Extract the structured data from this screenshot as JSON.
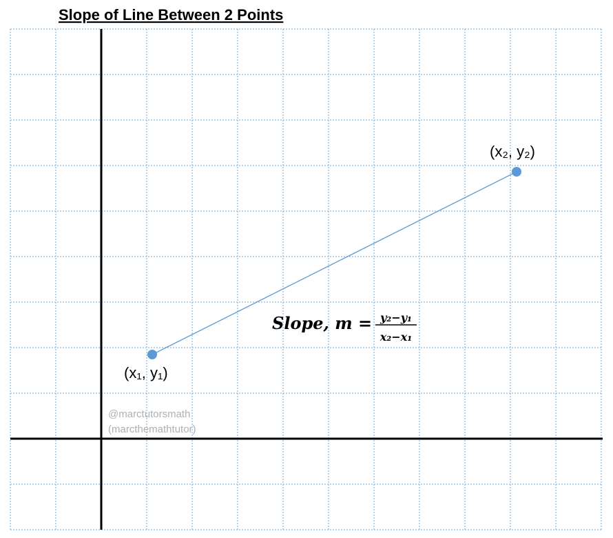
{
  "title": "Slope of Line Between 2 Points",
  "points": [
    {
      "label": "(x₁, y₁)"
    },
    {
      "label": "(x₂, y₂)"
    }
  ],
  "formula": {
    "lhs": "Slope, m =",
    "numerator": "y₂−y₁",
    "denominator": "x₂−x₁"
  },
  "watermark": [
    "@marctutorsmath",
    "(marcthemathtutor)"
  ]
}
